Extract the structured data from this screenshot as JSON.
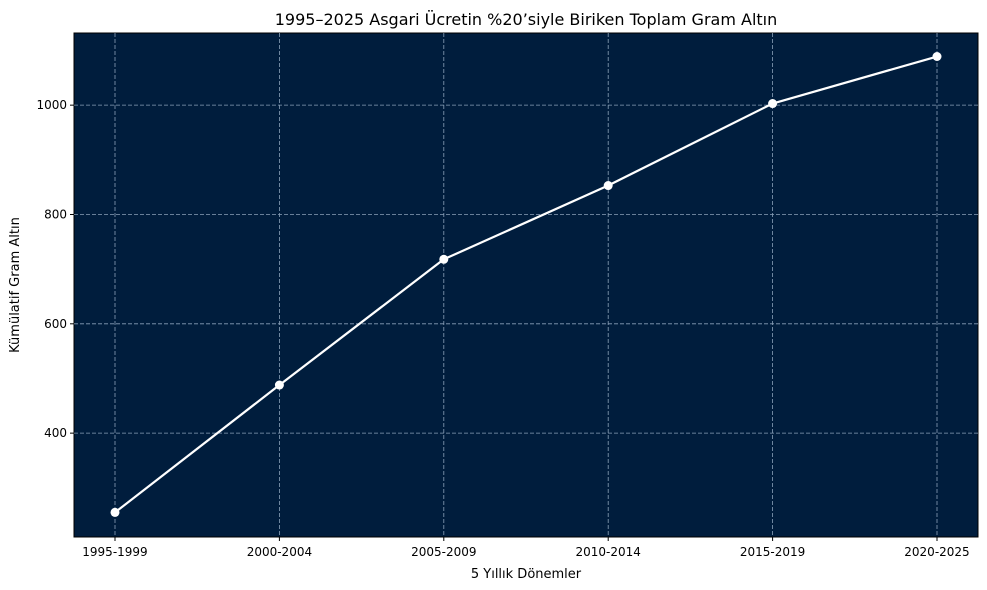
{
  "chart_data": {
    "type": "line",
    "title": "1995–2025 Asgari Ücretin %20’siyle Biriken Toplam Gram Altın",
    "xlabel": "5 Yıllık Dönemler",
    "ylabel": "Kümülatif Gram Altın",
    "categories": [
      "1995-1999",
      "2000-2004",
      "2005-2009",
      "2010-2014",
      "2015-2019",
      "2020-2025"
    ],
    "series": [
      {
        "values": [
          255,
          488,
          718,
          853,
          1003,
          1089
        ]
      }
    ],
    "ylim": [
      210,
      1132
    ],
    "yticks": [
      400,
      600,
      800,
      1000
    ],
    "grid": true,
    "colors": {
      "plot_bg": "#001d3d",
      "line": "#ffffff",
      "grid": "#8aa0b8"
    }
  }
}
